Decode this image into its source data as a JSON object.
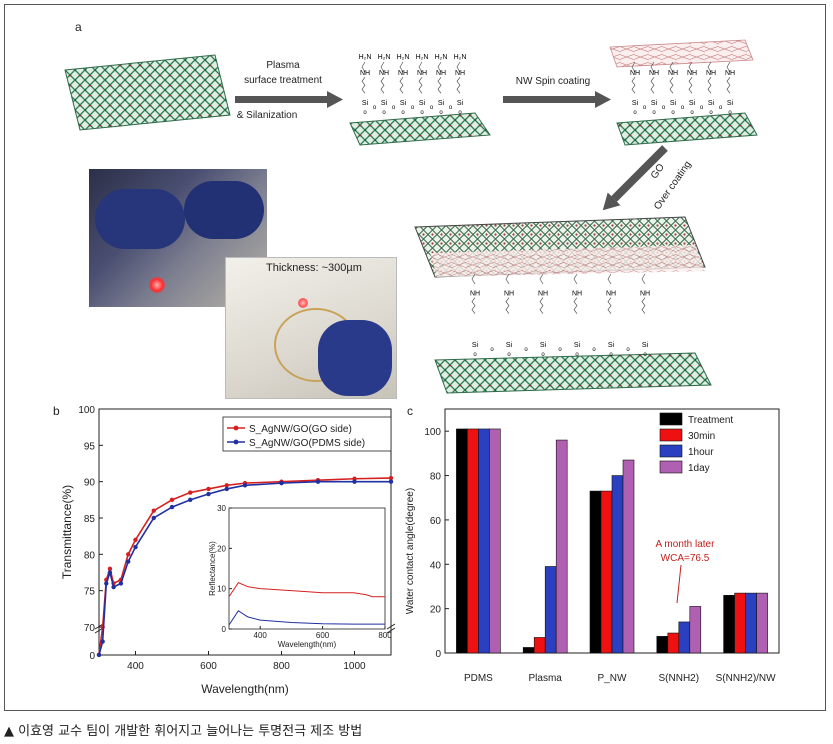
{
  "panel_a": {
    "label": "a",
    "step1": [
      "Plasma",
      "surface treatment",
      "& Silanization"
    ],
    "step2": "NW Spin coating",
    "step3": [
      "GO",
      "Over coating"
    ],
    "h2n": "H₂N",
    "nh": "NH",
    "si": "Si",
    "o": "o",
    "thickness": "Thickness: ~300µm"
  },
  "caption": "▲ 이효영 교수 팀이 개발한 휘어지고 늘어나는 투명전극 제조 방법",
  "chart_data": [
    {
      "panel": "b",
      "type": "line",
      "xlabel": "Wavelength(nm)",
      "ylabel": "Transmittance(%)",
      "xlim": [
        300,
        1100
      ],
      "xticks": [
        400,
        600,
        800,
        1000
      ],
      "yticks": [
        0,
        70,
        75,
        80,
        85,
        90,
        95,
        100
      ],
      "legend_position": "top-right",
      "series": [
        {
          "name": "S_AgNW/GO(GO side)",
          "color": "#d62020",
          "x": [
            300,
            310,
            320,
            330,
            340,
            360,
            380,
            400,
            450,
            500,
            550,
            600,
            650,
            700,
            800,
            900,
            1000,
            1100
          ],
          "y": [
            1,
            70,
            76.5,
            78,
            76,
            76.5,
            80,
            82,
            86,
            87.5,
            88.5,
            89,
            89.5,
            89.8,
            90,
            90.2,
            90.4,
            90.5
          ]
        },
        {
          "name": "S_AgNW/GO(PDMS side)",
          "color": "#2030a0",
          "x": [
            300,
            310,
            320,
            330,
            340,
            360,
            380,
            400,
            450,
            500,
            550,
            600,
            650,
            700,
            800,
            900,
            1000,
            1100
          ],
          "y": [
            0,
            68,
            76,
            77.5,
            75.5,
            76,
            79,
            81,
            85,
            86.5,
            87.5,
            88.3,
            89,
            89.5,
            89.8,
            90,
            90,
            90
          ]
        }
      ],
      "inset": {
        "xlabel": "Wavelength(nm)",
        "ylabel": "Reflectance(%)",
        "xlim": [
          300,
          800
        ],
        "ylim": [
          0,
          30
        ],
        "xticks": [
          400,
          600,
          800
        ],
        "yticks": [
          0,
          10,
          20,
          30
        ],
        "series": [
          {
            "name": "GO side",
            "color": "#d62020",
            "x": [
              300,
              330,
              360,
              400,
              500,
              600,
              700,
              740,
              760,
              800
            ],
            "y": [
              8,
              11.5,
              10.5,
              10,
              9.5,
              9,
              9,
              8.5,
              8,
              8
            ]
          },
          {
            "name": "PDMS side",
            "color": "#2030a0",
            "x": [
              300,
              330,
              360,
              400,
              500,
              600,
              700,
              800
            ],
            "y": [
              1,
              4.5,
              3,
              2.2,
              1.6,
              1.3,
              1.2,
              1.2
            ]
          }
        ]
      }
    },
    {
      "panel": "c",
      "type": "bar",
      "ylabel": "Water contact angle(degree)",
      "ylim": [
        0,
        110
      ],
      "yticks": [
        0,
        20,
        40,
        60,
        80,
        100
      ],
      "categories": [
        "PDMS",
        "Plasma",
        "P_NW",
        "S(NNH2)",
        "S(NNH2)/NW"
      ],
      "legend_position": "top-right",
      "series": [
        {
          "name": "Treatment",
          "color": "#000000",
          "values": [
            101,
            2.5,
            73,
            7.5,
            26
          ]
        },
        {
          "name": "30min",
          "color": "#ee1111",
          "values": [
            101,
            7,
            73,
            9,
            27
          ]
        },
        {
          "name": "1hour",
          "color": "#2a40c0",
          "values": [
            101,
            39,
            80,
            14,
            27
          ]
        },
        {
          "name": "1day",
          "color": "#b060b0",
          "values": [
            101,
            96,
            87,
            21,
            27
          ]
        }
      ],
      "annotation": {
        "lines": [
          "A month later",
          "WCA=76.5"
        ],
        "color": "#c0201c"
      }
    }
  ]
}
